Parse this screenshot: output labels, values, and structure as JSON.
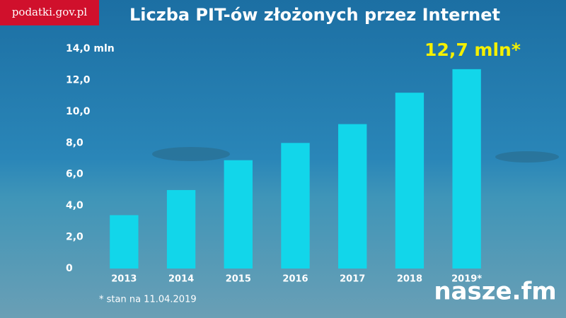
{
  "header": {
    "site": "podatki.gov.pl",
    "logo": "nasze.fm"
  },
  "chart_data": {
    "type": "bar",
    "title": "Liczba PIT-ów złożonych przez Internet",
    "annotation": "12,7 mln*",
    "footnote": "* stan na 11.04.2019",
    "categories": [
      "2013",
      "2014",
      "2015",
      "2016",
      "2017",
      "2018",
      "2019*"
    ],
    "values": [
      3.4,
      5.0,
      6.9,
      8.0,
      9.2,
      11.2,
      12.7
    ],
    "color": "#12d6ea",
    "ylim": [
      0,
      14
    ],
    "yticks": [
      0,
      {
        "value": 2,
        "label": "2,0"
      },
      {
        "value": 4,
        "label": "4,0"
      },
      {
        "value": 6,
        "label": "6,0"
      },
      {
        "value": 8,
        "label": "8,0"
      },
      {
        "value": 10,
        "label": "10,0"
      },
      {
        "value": 12,
        "label": "12,0"
      },
      {
        "value": 14,
        "label": "14,0 mln"
      }
    ],
    "grid": false
  }
}
